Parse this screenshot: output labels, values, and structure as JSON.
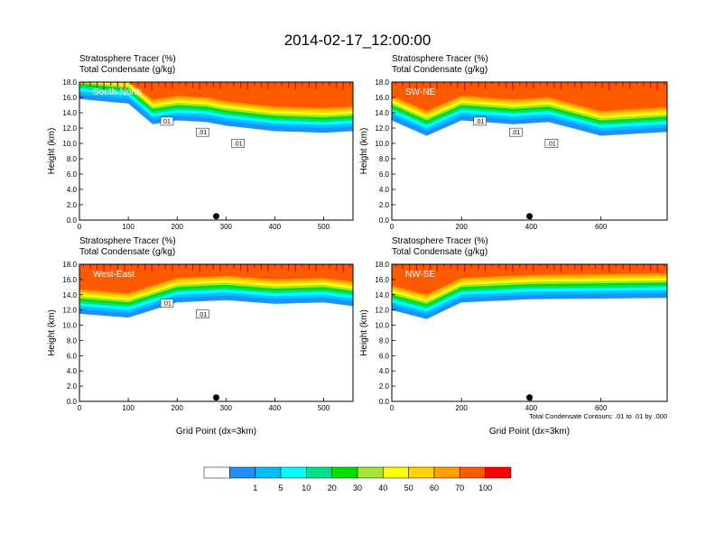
{
  "title": "2014-02-17_12:00:00",
  "color_levels": [
    {
      "label": "",
      "color": "#ffffff"
    },
    {
      "label": "1",
      "color": "#1e90ff"
    },
    {
      "label": "5",
      "color": "#00bfff"
    },
    {
      "label": "10",
      "color": "#00ffff"
    },
    {
      "label": "20",
      "color": "#00e08c"
    },
    {
      "label": "30",
      "color": "#00e000"
    },
    {
      "label": "40",
      "color": "#a0e632"
    },
    {
      "label": "50",
      "color": "#ffff00"
    },
    {
      "label": "60",
      "color": "#ffd200"
    },
    {
      "label": "70",
      "color": "#ffa000"
    },
    {
      "label": "100",
      "color": "#ff5a00"
    },
    {
      "label": "",
      "color": "#ff0000"
    }
  ],
  "contour_note": "Total Condensate Contours: .01 to .01 by .000",
  "chart_data": [
    {
      "type": "heatmap",
      "panel_label": "South-North",
      "header_line1": "Stratosphere Tracer   (%)",
      "header_line2": "Total Condensate   (g/kg)",
      "ylabel": "Height (km)",
      "xlabel": "",
      "xlim": [
        0,
        560
      ],
      "ylim": [
        0,
        18
      ],
      "xticks": [
        "0",
        "100",
        "200",
        "300",
        "400",
        "500"
      ],
      "yticks": [
        "0.0",
        "2.0",
        "4.0",
        "6.0",
        "8.0",
        "10.0",
        "12.0",
        "14.0",
        "16.0",
        "18.0"
      ],
      "marker_x": 280,
      "contour_labels": [
        "01",
        ".01",
        ".01"
      ],
      "tracer_bottom_km": [
        [
          0,
          15.8
        ],
        [
          100,
          15.2
        ],
        [
          150,
          12.5
        ],
        [
          200,
          13.0
        ],
        [
          260,
          12.8
        ],
        [
          300,
          12.3
        ],
        [
          400,
          11.6
        ],
        [
          500,
          11.4
        ],
        [
          560,
          11.6
        ]
      ]
    },
    {
      "type": "heatmap",
      "panel_label": "SW-NE",
      "header_line1": "Stratosphere Tracer   (%)",
      "header_line2": "Total Condensate   (g/kg)",
      "ylabel": "Height (km)",
      "xlabel": "",
      "xlim": [
        0,
        790
      ],
      "ylim": [
        0,
        18
      ],
      "xticks": [
        "0",
        "200",
        "400",
        "600"
      ],
      "yticks": [
        "0.0",
        "2.0",
        "4.0",
        "6.0",
        "8.0",
        "10.0",
        "12.0",
        "14.0",
        "16.0",
        "18.0"
      ],
      "marker_x": 395,
      "contour_labels": [
        ".01",
        ".01",
        ".01"
      ],
      "tracer_bottom_km": [
        [
          0,
          13.0
        ],
        [
          100,
          11.0
        ],
        [
          200,
          13.0
        ],
        [
          350,
          12.5
        ],
        [
          450,
          12.8
        ],
        [
          600,
          11.0
        ],
        [
          790,
          11.5
        ]
      ]
    },
    {
      "type": "heatmap",
      "panel_label": "West-East",
      "header_line1": "Stratosphere Tracer   (%)",
      "header_line2": "Total Condensate   (g/kg)",
      "ylabel": "Height (km)",
      "xlabel": "Grid Point (dx=3km)",
      "xlim": [
        0,
        560
      ],
      "ylim": [
        0,
        18
      ],
      "xticks": [
        "0",
        "100",
        "200",
        "300",
        "400",
        "500"
      ],
      "yticks": [
        "0.0",
        "2.0",
        "4.0",
        "6.0",
        "8.0",
        "10.0",
        "12.0",
        "14.0",
        "16.0",
        "18.0"
      ],
      "marker_x": 280,
      "contour_labels": [
        ".01",
        ".01"
      ],
      "tracer_bottom_km": [
        [
          0,
          11.5
        ],
        [
          100,
          11.0
        ],
        [
          200,
          13.0
        ],
        [
          300,
          13.3
        ],
        [
          400,
          12.8
        ],
        [
          500,
          13.0
        ],
        [
          560,
          12.5
        ]
      ]
    },
    {
      "type": "heatmap",
      "panel_label": "NW-SE",
      "header_line1": "Stratosphere Tracer   (%)",
      "header_line2": "Total Condensate   (g/kg)",
      "ylabel": "Height (km)",
      "xlabel": "Grid Point (dx=3km)",
      "xlim": [
        0,
        790
      ],
      "ylim": [
        0,
        18
      ],
      "xticks": [
        "0",
        "200",
        "400",
        "600"
      ],
      "yticks": [
        "0.0",
        "2.0",
        "4.0",
        "6.0",
        "8.0",
        "10.0",
        "12.0",
        "14.0",
        "16.0",
        "18.0"
      ],
      "marker_x": 395,
      "contour_labels": [],
      "tracer_bottom_km": [
        [
          0,
          12.0
        ],
        [
          100,
          10.8
        ],
        [
          200,
          13.0
        ],
        [
          400,
          13.4
        ],
        [
          600,
          13.5
        ],
        [
          790,
          13.6
        ]
      ]
    }
  ]
}
